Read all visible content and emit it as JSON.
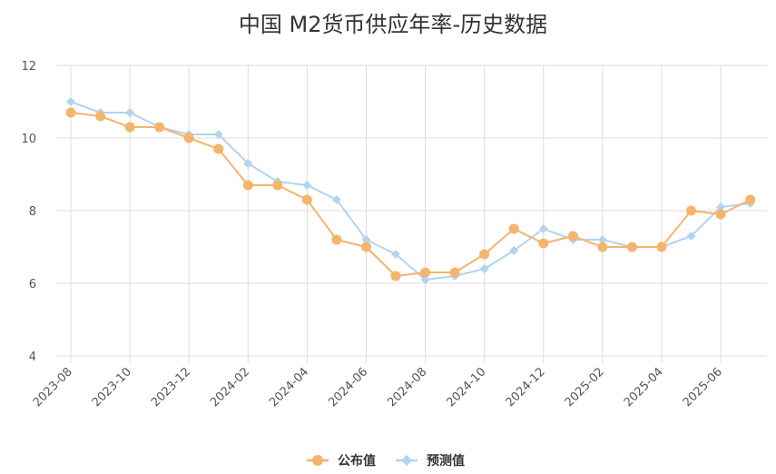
{
  "chart_data": {
    "type": "line",
    "title": "中国 M2货币供应年率-历史数据",
    "xlabel": "",
    "ylabel": "",
    "ylim": [
      4,
      12
    ],
    "yticks": [
      "4",
      "6",
      "8",
      "10",
      "12"
    ],
    "categories": [
      "2023-08",
      "2023-09",
      "2023-10",
      "2023-11",
      "2023-12",
      "2024-01",
      "2024-02",
      "2024-03",
      "2024-04",
      "2024-05",
      "2024-06",
      "2024-07",
      "2024-08",
      "2024-09",
      "2024-10",
      "2024-11",
      "2024-12",
      "2025-01",
      "2025-02",
      "2025-03",
      "2025-04",
      "2025-05",
      "2025-06",
      "2025-07"
    ],
    "xtick_labels": [
      "2023-08",
      "2023-10",
      "2023-12",
      "2024-02",
      "2024-04",
      "2024-06",
      "2024-08",
      "2024-10",
      "2024-12",
      "2025-02",
      "2025-04",
      "2025-06"
    ],
    "grid": true,
    "legend_position": "bottom",
    "series": [
      {
        "name": "公布值",
        "color": "#f5b46b",
        "marker": "circle",
        "values": [
          10.7,
          10.6,
          10.3,
          10.3,
          10.0,
          9.7,
          8.7,
          8.7,
          8.3,
          7.2,
          7.0,
          6.2,
          6.3,
          6.3,
          6.8,
          7.5,
          7.1,
          7.3,
          7.0,
          7.0,
          7.0,
          8.0,
          7.9,
          8.3
        ]
      },
      {
        "name": "预测值",
        "color": "#b3d4ef",
        "marker": "diamond",
        "values": [
          11.0,
          10.7,
          10.7,
          10.3,
          10.1,
          10.1,
          9.3,
          8.8,
          8.7,
          8.3,
          7.2,
          6.8,
          6.1,
          6.2,
          6.4,
          6.9,
          7.5,
          7.2,
          7.2,
          7.0,
          7.0,
          7.3,
          8.1,
          8.2
        ]
      }
    ]
  }
}
